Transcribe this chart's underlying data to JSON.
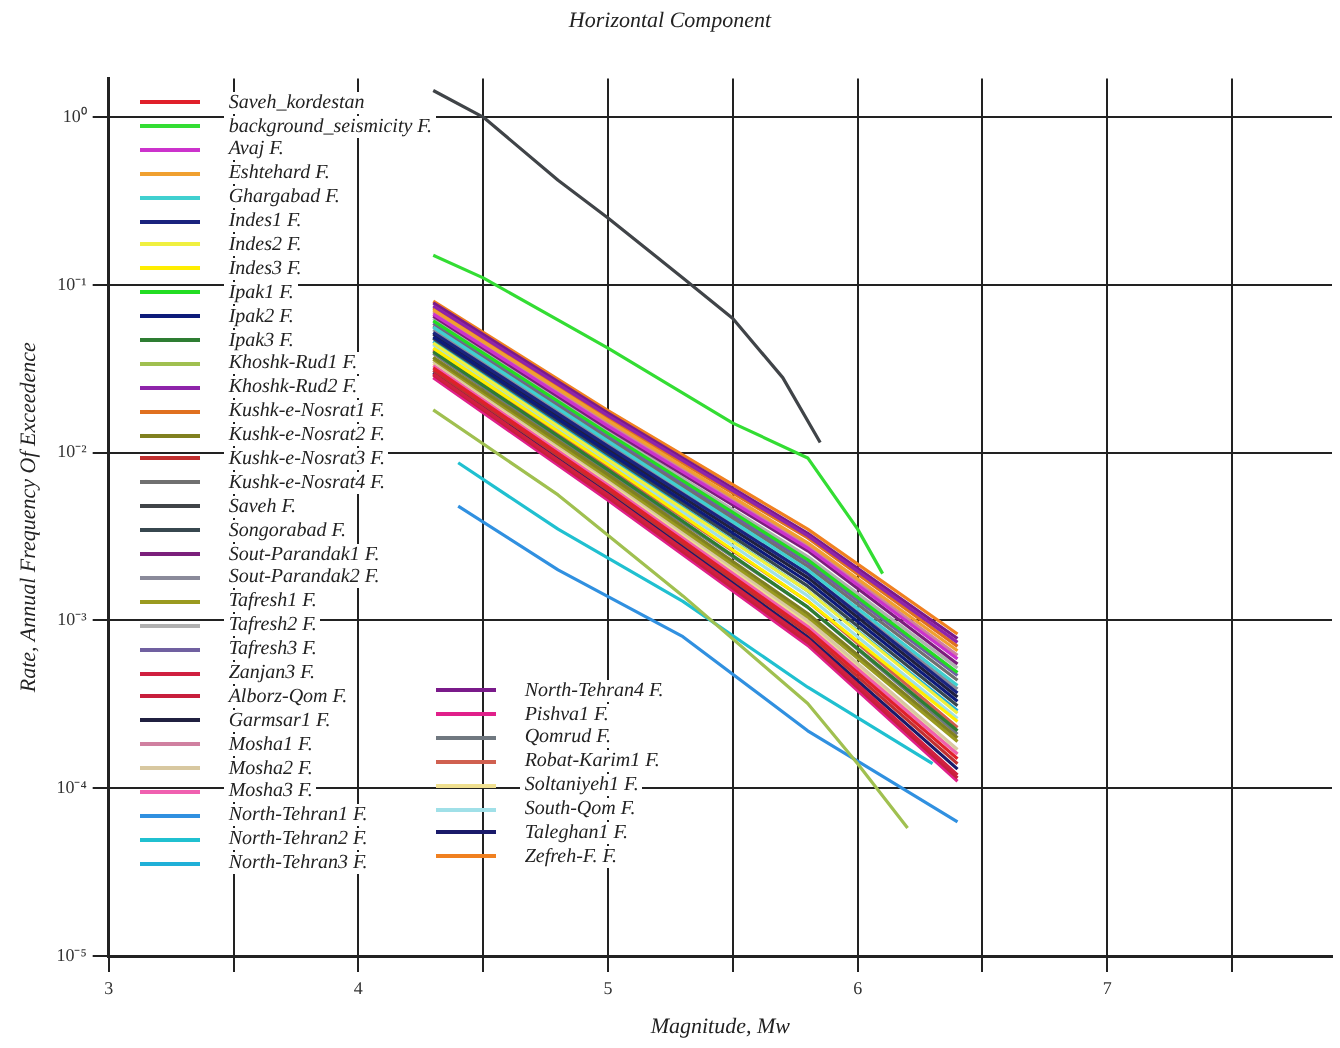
{
  "chart_data": {
    "type": "line",
    "title": "Horizontal Component",
    "xlabel": "Magnitude, Mw",
    "ylabel": "Rate, Annual Frequency Of Exceedence",
    "x": [
      4.3,
      5.0,
      5.8,
      6.4
    ],
    "xlim": [
      3,
      7.9
    ],
    "xticks": [
      3,
      {
        "value": 3.5,
        "label": null
      },
      4,
      {
        "value": 4.5,
        "label": null
      },
      5,
      {
        "value": 5.5,
        "label": null
      },
      6,
      {
        "value": 6.5,
        "label": null
      },
      7,
      {
        "value": 7.5,
        "label": null
      }
    ],
    "ylim": [
      1e-05,
      1.7
    ],
    "yticks": [
      {
        "value": 1e-05,
        "label": "10⁻⁵"
      },
      {
        "value": 0.0001,
        "label": "10⁻⁴"
      },
      {
        "value": 0.001,
        "label": "10⁻³"
      },
      {
        "value": 0.01,
        "label": "10⁻²"
      },
      {
        "value": 0.1,
        "label": "10⁻¹"
      },
      {
        "value": 1,
        "label": "10⁰"
      }
    ],
    "log": "y",
    "grid": true,
    "legend": "top left",
    "marker": "none",
    "series": [
      {
        "name": "Saveh_kordestan",
        "color": "#e0202a",
        "values": [
          0.032,
          0.0062,
          0.00088,
          0.00015
        ]
      },
      {
        "name": "background_seismicity F.",
        "color": "#33dd33",
        "x": [
          4.3,
          4.5,
          5.0,
          5.5,
          5.8,
          6.0,
          6.1
        ],
        "values": [
          0.15,
          0.11,
          0.042,
          0.015,
          0.0093,
          0.0035,
          0.0019
        ]
      },
      {
        "name": "Avaj F.",
        "color": "#cc33cc",
        "values": [
          0.067,
          0.0144,
          0.0027,
          0.00059
        ]
      },
      {
        "name": "Eshtehard F.",
        "color": "#f0a030",
        "values": [
          0.071,
          0.0155,
          0.0029,
          0.00066
        ]
      },
      {
        "name": "Ghargabad F.",
        "color": "#40d0d0",
        "values": [
          0.056,
          0.0117,
          0.002,
          0.00041
        ]
      },
      {
        "name": "Indes1 F.",
        "color": "#1a237e",
        "values": [
          0.052,
          0.0109,
          0.0019,
          0.00037
        ]
      },
      {
        "name": "Indes2 F.",
        "color": "#f0f040",
        "values": [
          0.045,
          0.0091,
          0.0015,
          0.00028
        ]
      },
      {
        "name": "Indes3 F.",
        "color": "#ffee00",
        "values": [
          0.042,
          0.0085,
          0.0013,
          0.00025
        ]
      },
      {
        "name": "Ipak1 F.",
        "color": "#22dd22",
        "values": [
          0.061,
          0.013,
          0.0023,
          0.00049
        ]
      },
      {
        "name": "Ipak2 F.",
        "color": "#0d1b7a",
        "values": [
          0.049,
          0.0101,
          0.0017,
          0.00033
        ]
      },
      {
        "name": "Ipak3 F.",
        "color": "#2e7d32",
        "values": [
          0.04,
          0.0079,
          0.0012,
          0.00022
        ]
      },
      {
        "name": "Khoshk-Rud1 F.",
        "color": "#a0c050",
        "x": [
          4.3,
          4.8,
          5.3,
          5.8,
          6.0,
          6.2
        ],
        "values": [
          0.018,
          0.0056,
          0.0014,
          0.00032,
          0.00014,
          5.8e-05
        ]
      },
      {
        "name": "Khoshk-Rud2 F.",
        "color": "#8e24aa",
        "values": [
          0.075,
          0.0166,
          0.0032,
          0.00074
        ]
      },
      {
        "name": "Kushk-e-Nosrat1 F.",
        "color": "#e07020",
        "values": [
          0.073,
          0.016,
          0.0031,
          0.0007
        ]
      },
      {
        "name": "Kushk-e-Nosrat2 F.",
        "color": "#808020",
        "values": [
          0.037,
          0.0074,
          0.0011,
          0.0002
        ]
      },
      {
        "name": "Kushk-e-Nosrat3 F.",
        "color": "#c03030",
        "values": [
          0.031,
          0.006,
          0.00084,
          0.00014
        ]
      },
      {
        "name": "Kushk-e-Nosrat4 F.",
        "color": "#707070",
        "values": [
          0.057,
          0.0121,
          0.0021,
          0.00044
        ]
      },
      {
        "name": "Saveh F.",
        "color": "#404448",
        "x": [
          4.3,
          4.5,
          4.8,
          5.0,
          5.3,
          5.5,
          5.7,
          5.85
        ],
        "values": [
          1.44,
          1.0,
          0.42,
          0.25,
          0.11,
          0.063,
          0.028,
          0.0115
        ]
      },
      {
        "name": "Songorabad F.",
        "color": "#37474f",
        "values": [
          0.048,
          0.0098,
          0.0016,
          0.00031
        ]
      },
      {
        "name": "Sout-Parandak1 F.",
        "color": "#7b1f7b",
        "values": [
          0.065,
          0.0139,
          0.0026,
          0.00055
        ]
      },
      {
        "name": "Sout-Parandak2 F.",
        "color": "#8a8a9a",
        "values": [
          0.054,
          0.0113,
          0.0019,
          0.00039
        ]
      },
      {
        "name": "Tafresh1 F.",
        "color": "#9a9a20",
        "values": [
          0.036,
          0.0071,
          0.00105,
          0.00019
        ]
      },
      {
        "name": "Tafresh2 F.",
        "color": "#b0b0b0",
        "values": [
          0.063,
          0.0134,
          0.0024,
          0.00052
        ]
      },
      {
        "name": "Tafresh3 F.",
        "color": "#7060a0",
        "values": [
          0.059,
          0.0125,
          0.0022,
          0.00047
        ]
      },
      {
        "name": "Zanjan3 F.",
        "color": "#d02040",
        "values": [
          0.0295,
          0.0056,
          0.00077,
          0.00012
        ]
      },
      {
        "name": "Alborz-Qom F.",
        "color": "#c81e3c",
        "values": [
          0.029,
          0.0054,
          0.00074,
          0.000115
        ]
      },
      {
        "name": "Garmsar1 F.",
        "color": "#202040",
        "values": [
          0.051,
          0.0105,
          0.0018,
          0.00035
        ]
      },
      {
        "name": "Mosha1 F.",
        "color": "#d080a0",
        "values": [
          0.069,
          0.0149,
          0.0028,
          0.00062
        ]
      },
      {
        "name": "Mosha2 F.",
        "color": "#d8c8a0",
        "values": [
          0.035,
          0.0069,
          0.001,
          0.00017
        ]
      },
      {
        "name": "Mosha3 F.",
        "color": "#f060b0",
        "values": [
          0.033,
          0.0064,
          0.00092,
          0.00016
        ]
      },
      {
        "name": "North-Tehran1 F.",
        "color": "#3090e0",
        "x": [
          4.4,
          4.8,
          5.3,
          5.8,
          6.4
        ],
        "values": [
          0.0048,
          0.002,
          0.0008,
          0.00022,
          6.3e-05
        ]
      },
      {
        "name": "North-Tehran2 F.",
        "color": "#20c0d0",
        "x": [
          4.4,
          4.8,
          5.3,
          5.8,
          6.3
        ],
        "values": [
          0.0087,
          0.0035,
          0.0013,
          0.0004,
          0.00014
        ]
      },
      {
        "name": "North-Tehran3 F.",
        "color": "#20b0d8",
        "values": [
          0.046,
          0.0094,
          0.0015,
          0.00029
        ]
      },
      {
        "name": "North-Tehran4 F.",
        "color": "#7a1a8a",
        "values": [
          0.078,
          0.0172,
          0.0033,
          0.00078
        ]
      },
      {
        "name": "Pishva1 F.",
        "color": "#e0208a",
        "values": [
          0.028,
          0.0052,
          0.00071,
          0.00011
        ]
      },
      {
        "name": "Qomrud F.",
        "color": "#707880",
        "values": [
          0.039,
          0.0076,
          0.0012,
          0.00021
        ]
      },
      {
        "name": "Robat-Karim1 F.",
        "color": "#d06050",
        "values": [
          0.041,
          0.0082,
          0.0013,
          0.00023
        ]
      },
      {
        "name": "Soltaniyeh1 F.",
        "color": "#f0e090",
        "values": [
          0.034,
          0.0066,
          0.00096,
          0.00016
        ]
      },
      {
        "name": "South-Qom F.",
        "color": "#a0e0e8",
        "values": [
          0.044,
          0.0088,
          0.0014,
          0.00026
        ]
      },
      {
        "name": "Taleghan1 F.",
        "color": "#1a1a6a",
        "values": [
          0.03,
          0.0058,
          0.0008,
          0.00013
        ]
      },
      {
        "name": "Zefreh-F. F.",
        "color": "#f08020",
        "values": [
          0.08,
          0.0178,
          0.0035,
          0.00083
        ]
      }
    ]
  }
}
